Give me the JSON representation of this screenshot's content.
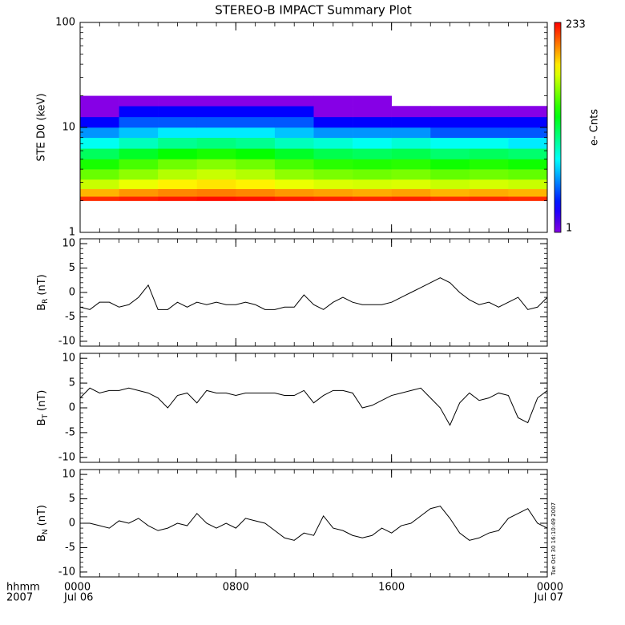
{
  "title": "STEREO-B IMPACT Summary Plot",
  "timestamp": "Tue Oct 30 16:10:49 2007",
  "chart_data": [
    {
      "type": "heatmap",
      "ylabel": "STE D0 (keV)",
      "log": true,
      "xlim": [
        0,
        24
      ],
      "xticks": [
        0,
        8,
        16,
        24
      ],
      "ylim": [
        1,
        100
      ],
      "yticks": [
        1,
        10,
        100
      ],
      "zlim": [
        1,
        233
      ],
      "zlabel": "e- Cnts",
      "x_edges": [
        0,
        2,
        4,
        6,
        8,
        10,
        12,
        14,
        16,
        18,
        20,
        22,
        24
      ],
      "y_edges": [
        2,
        2.2,
        2.6,
        3.2,
        4,
        5,
        6.3,
        8,
        10,
        12.6,
        16,
        20
      ],
      "z": [
        [
          190,
          200,
          210,
          220,
          215,
          205,
          200,
          195,
          200,
          190,
          195,
          190
        ],
        [
          100,
          115,
          125,
          130,
          125,
          115,
          110,
          105,
          110,
          100,
          105,
          100
        ],
        [
          55,
          65,
          75,
          80,
          75,
          65,
          60,
          58,
          60,
          55,
          58,
          55
        ],
        [
          35,
          42,
          50,
          55,
          50,
          42,
          38,
          36,
          38,
          34,
          36,
          34
        ],
        [
          24,
          30,
          36,
          40,
          36,
          30,
          26,
          25,
          26,
          23,
          25,
          23
        ],
        [
          14,
          18,
          22,
          24,
          22,
          18,
          15,
          14,
          15,
          13,
          14,
          13
        ],
        [
          7,
          9,
          11,
          12,
          11,
          9,
          8,
          7,
          8,
          7,
          7,
          6
        ],
        [
          4,
          5,
          6,
          6,
          6,
          5,
          4,
          4,
          4,
          3,
          3,
          3
        ],
        [
          2,
          3,
          3,
          3,
          3,
          3,
          2,
          2,
          2,
          2,
          2,
          2
        ],
        [
          1,
          2,
          2,
          2,
          2,
          2,
          1,
          1,
          1,
          1,
          1,
          1
        ],
        [
          1,
          1,
          1,
          1,
          1,
          1,
          1,
          1,
          null,
          null,
          null,
          null
        ]
      ]
    },
    {
      "type": "line",
      "ylabel": "B",
      "ylabel_sub": "R",
      "ylabel_unit": "(nT)",
      "color": "#000000",
      "xlim": [
        0,
        24
      ],
      "xticks": [
        0,
        8,
        16,
        24
      ],
      "ylim": [
        -11,
        11
      ],
      "yticks": [
        -10,
        -5,
        0,
        5,
        10
      ],
      "x": [
        0,
        0.5,
        1,
        1.5,
        2,
        2.5,
        3,
        3.5,
        4,
        4.5,
        5,
        5.5,
        6,
        6.5,
        7,
        7.5,
        8,
        8.5,
        9,
        9.5,
        10,
        10.5,
        11,
        11.5,
        12,
        12.5,
        13,
        13.5,
        14,
        14.5,
        15,
        15.5,
        16,
        16.5,
        17,
        17.5,
        18,
        18.5,
        19,
        19.5,
        20,
        20.5,
        21,
        21.5,
        22,
        22.5,
        23,
        23.5,
        24
      ],
      "values": [
        -3,
        -3.5,
        -2,
        -2,
        -3,
        -2.5,
        -1,
        1.5,
        -3.5,
        -3.5,
        -2,
        -3,
        -2,
        -2.5,
        -2,
        -2.5,
        -2.5,
        -2,
        -2.5,
        -3.5,
        -3.5,
        -3,
        -3,
        -0.5,
        -2.5,
        -3.5,
        -2,
        -1,
        -2,
        -2.5,
        -2.5,
        -2.5,
        -2,
        -1,
        0,
        1,
        2,
        3,
        2,
        0,
        -1.5,
        -2.5,
        -2,
        -3,
        -2,
        -1,
        -3.5,
        -3,
        -1
      ]
    },
    {
      "type": "line",
      "ylabel": "B",
      "ylabel_sub": "T",
      "ylabel_unit": "(nT)",
      "color": "#000000",
      "xlim": [
        0,
        24
      ],
      "xticks": [
        0,
        8,
        16,
        24
      ],
      "ylim": [
        -11,
        11
      ],
      "yticks": [
        -10,
        -5,
        0,
        5,
        10
      ],
      "x": [
        0,
        0.5,
        1,
        1.5,
        2,
        2.5,
        3,
        3.5,
        4,
        4.5,
        5,
        5.5,
        6,
        6.5,
        7,
        7.5,
        8,
        8.5,
        9,
        9.5,
        10,
        10.5,
        11,
        11.5,
        12,
        12.5,
        13,
        13.5,
        14,
        14.5,
        15,
        15.5,
        16,
        16.5,
        17,
        17.5,
        18,
        18.5,
        19,
        19.5,
        20,
        20.5,
        21,
        21.5,
        22,
        22.5,
        23,
        23.5,
        24
      ],
      "values": [
        2,
        4,
        3,
        3.5,
        3.5,
        4,
        3.5,
        3,
        2,
        0,
        2.5,
        3,
        1,
        3.5,
        3,
        3,
        2.5,
        3,
        3,
        3,
        3,
        2.5,
        2.5,
        3.5,
        1,
        2.5,
        3.5,
        3.5,
        3,
        0,
        0.5,
        1.5,
        2.5,
        3,
        3.5,
        4,
        2,
        0,
        -3.5,
        1,
        3,
        1.5,
        2,
        3,
        2.5,
        -2,
        -3,
        2,
        3.5
      ]
    },
    {
      "type": "line",
      "ylabel": "B",
      "ylabel_sub": "N",
      "ylabel_unit": "(nT)",
      "color": "#000000",
      "xlim": [
        0,
        24
      ],
      "xticks": [
        {
          "value": 0,
          "label": "0000"
        },
        {
          "value": 8,
          "label": "0800"
        },
        {
          "value": 16,
          "label": "1600"
        },
        {
          "value": 24,
          "label": "0000"
        }
      ],
      "x_dates": [
        {
          "value": 0,
          "label": "Jul 06"
        },
        {
          "value": 24,
          "label": "Jul 07"
        }
      ],
      "xlabel": "hhmm",
      "year": "2007",
      "ylim": [
        -11,
        11
      ],
      "yticks": [
        -10,
        -5,
        0,
        5,
        10
      ],
      "x": [
        0,
        0.5,
        1,
        1.5,
        2,
        2.5,
        3,
        3.5,
        4,
        4.5,
        5,
        5.5,
        6,
        6.5,
        7,
        7.5,
        8,
        8.5,
        9,
        9.5,
        10,
        10.5,
        11,
        11.5,
        12,
        12.5,
        13,
        13.5,
        14,
        14.5,
        15,
        15.5,
        16,
        16.5,
        17,
        17.5,
        18,
        18.5,
        19,
        19.5,
        20,
        20.5,
        21,
        21.5,
        22,
        22.5,
        23,
        23.5,
        24
      ],
      "values": [
        0,
        0,
        -0.5,
        -1,
        0.5,
        0,
        1,
        -0.5,
        -1.5,
        -1,
        0,
        -0.5,
        2,
        0,
        -1,
        0,
        -1,
        1,
        0.5,
        0,
        -1.5,
        -3,
        -3.5,
        -2,
        -2.5,
        1.5,
        -1,
        -1.5,
        -2.5,
        -3,
        -2.5,
        -1,
        -2,
        -0.5,
        0,
        1.5,
        3,
        3.5,
        1,
        -2,
        -3.5,
        -3,
        -2,
        -1.5,
        1,
        2,
        3,
        0,
        -1
      ]
    }
  ]
}
